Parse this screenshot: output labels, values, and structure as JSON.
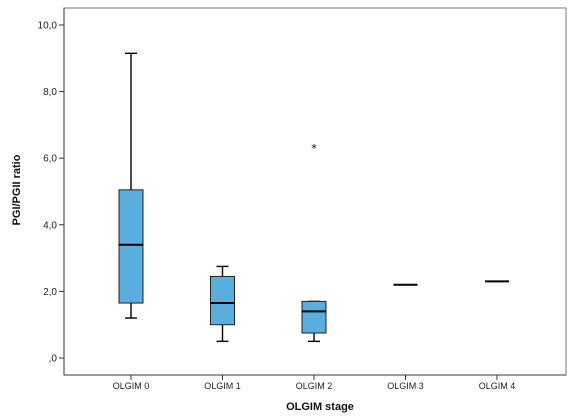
{
  "chart_data": {
    "type": "box",
    "xlabel": "OLGIM stage",
    "ylabel": "PGI/PGII ratio",
    "ylim": [
      0,
      10
    ],
    "ytick_values": [
      0,
      2,
      4,
      6,
      8,
      10
    ],
    "ytick_labels": [
      ",0",
      "2,0",
      "4,0",
      "6,0",
      "8,0",
      "10,0"
    ],
    "box_color": "#5aaede",
    "categories": [
      "OLGIM 0",
      "OLGIM 1",
      "OLGIM 2",
      "OLGIM 3",
      "OLGIM 4"
    ],
    "boxes": [
      {
        "category": "OLGIM 0",
        "min": 1.2,
        "q1": 1.65,
        "median": 3.4,
        "q3": 5.05,
        "max": 9.15,
        "outliers": []
      },
      {
        "category": "OLGIM 1",
        "min": 0.5,
        "q1": 1.0,
        "median": 1.65,
        "q3": 2.45,
        "max": 2.75,
        "outliers": []
      },
      {
        "category": "OLGIM 2",
        "min": 0.5,
        "q1": 0.75,
        "median": 1.4,
        "q3": 1.7,
        "max": 1.7,
        "outliers": [
          6.3
        ]
      },
      {
        "category": "OLGIM 3",
        "min": 2.2,
        "q1": 2.2,
        "median": 2.2,
        "q3": 2.2,
        "max": 2.2,
        "outliers": []
      },
      {
        "category": "OLGIM 4",
        "min": 2.3,
        "q1": 2.3,
        "median": 2.3,
        "q3": 2.3,
        "max": 2.3,
        "outliers": []
      }
    ]
  }
}
